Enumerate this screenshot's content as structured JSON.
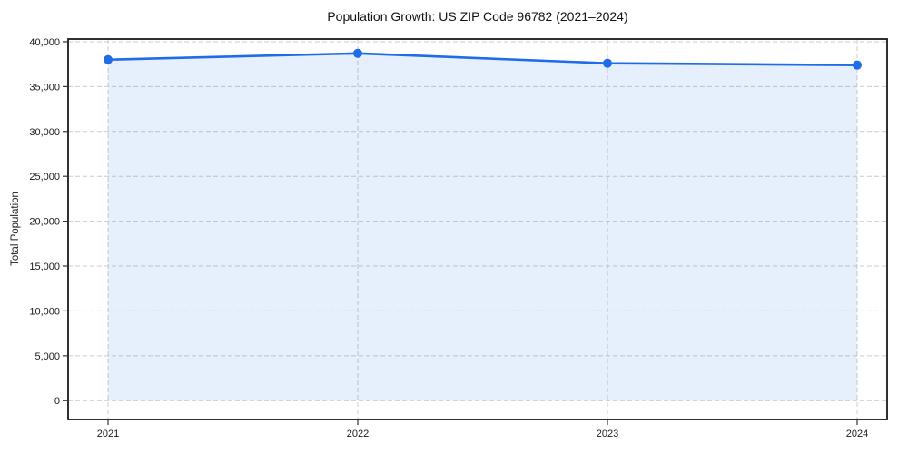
{
  "chart_data": {
    "type": "area",
    "title": "Population Growth: US ZIP Code 96782 (2021–2024)",
    "xlabel": "",
    "ylabel": "Total Population",
    "series_name": "Total Population",
    "x": [
      2021,
      2022,
      2023,
      2024
    ],
    "values": [
      38000,
      38700,
      37600,
      37400
    ],
    "baseline": 0,
    "xticks": {
      "values": [
        2021,
        2022,
        2023,
        2024
      ],
      "labels": [
        "2021",
        "2022",
        "2023",
        "2024"
      ]
    },
    "yticks": {
      "values": [
        0,
        5000,
        10000,
        15000,
        20000,
        25000,
        30000,
        35000,
        40000
      ],
      "labels": [
        "0",
        "5,000",
        "10,000",
        "15,000",
        "20,000",
        "25,000",
        "30,000",
        "35,000",
        "40,000"
      ]
    },
    "xlim": [
      2020.84,
      2024.12
    ],
    "ylim": [
      -2100,
      40300
    ],
    "grid": true,
    "grid_style": "dashed",
    "legend": false,
    "colors": {
      "line": "#1f6ce8",
      "marker": "#1f6ce8",
      "fill": "#1f6ce8",
      "fill_opacity": 0.11,
      "grid": "#cccccc",
      "spine": "#1a1a1a",
      "tick": "#333333",
      "text": "#1a1a1a",
      "background": "#ffffff"
    }
  }
}
